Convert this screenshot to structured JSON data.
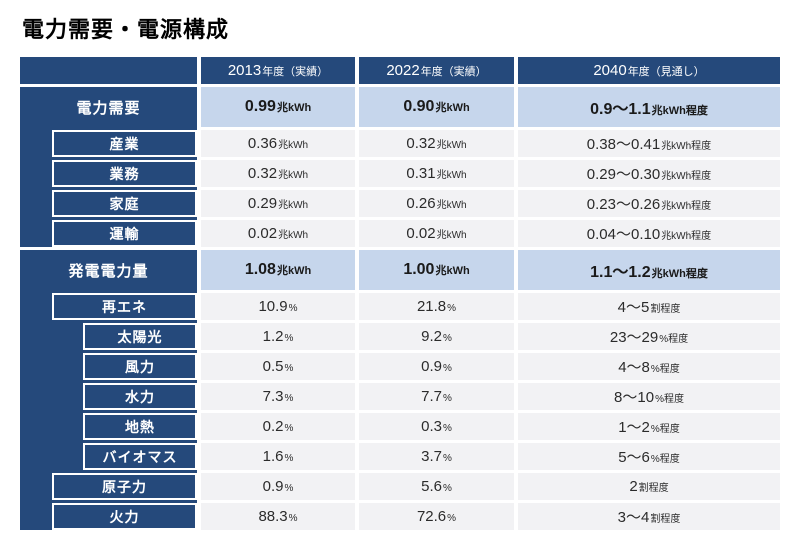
{
  "title": "電力需要・電源構成",
  "colors": {
    "navy": "#25497b",
    "light_blue": "#c6d6ec",
    "row_gray": "#f2f2f4",
    "text_dark": "#1a1a1a",
    "text_body": "#2b2b2b",
    "gap_white": "#ffffff"
  },
  "table": {
    "header": [
      {
        "year": "2013",
        "note": "年度（実績）"
      },
      {
        "year": "2022",
        "note": "年度（実績）"
      },
      {
        "year": "2040",
        "note": "年度（見通し）"
      }
    ],
    "rows": [
      {
        "key": "demand",
        "label": "電力需要",
        "level": 0,
        "bold": true,
        "values": [
          {
            "num": "0.99",
            "unit": "兆kWh"
          },
          {
            "num": "0.90",
            "unit": "兆kWh"
          },
          {
            "num": "0.9〜1.1",
            "unit": "兆kWh程度"
          }
        ]
      },
      {
        "key": "industry",
        "label": "産業",
        "level": 1,
        "bold": false,
        "values": [
          {
            "num": "0.36",
            "unit": "兆kWh"
          },
          {
            "num": "0.32",
            "unit": "兆kWh"
          },
          {
            "num": "0.38〜0.41",
            "unit": "兆kWh程度"
          }
        ]
      },
      {
        "key": "commercial",
        "label": "業務",
        "level": 1,
        "bold": false,
        "values": [
          {
            "num": "0.32",
            "unit": "兆kWh"
          },
          {
            "num": "0.31",
            "unit": "兆kWh"
          },
          {
            "num": "0.29〜0.30",
            "unit": "兆kWh程度"
          }
        ]
      },
      {
        "key": "residential",
        "label": "家庭",
        "level": 1,
        "bold": false,
        "values": [
          {
            "num": "0.29",
            "unit": "兆kWh"
          },
          {
            "num": "0.26",
            "unit": "兆kWh"
          },
          {
            "num": "0.23〜0.26",
            "unit": "兆kWh程度"
          }
        ]
      },
      {
        "key": "transport",
        "label": "運輸",
        "level": 1,
        "bold": false,
        "values": [
          {
            "num": "0.02",
            "unit": "兆kWh"
          },
          {
            "num": "0.02",
            "unit": "兆kWh"
          },
          {
            "num": "0.04〜0.10",
            "unit": "兆kWh程度"
          }
        ]
      },
      {
        "key": "generation",
        "label": "発電電力量",
        "level": 0,
        "bold": true,
        "values": [
          {
            "num": "1.08",
            "unit": "兆kWh"
          },
          {
            "num": "1.00",
            "unit": "兆kWh"
          },
          {
            "num": "1.1〜1.2",
            "unit": "兆kWh程度"
          }
        ]
      },
      {
        "key": "renewables",
        "label": "再エネ",
        "level": 1,
        "bold": false,
        "values": [
          {
            "num": "10.9",
            "unit": "%"
          },
          {
            "num": "21.8",
            "unit": "%"
          },
          {
            "num": "4〜5",
            "unit": "割程度"
          }
        ]
      },
      {
        "key": "solar",
        "label": "太陽光",
        "level": 2,
        "bold": false,
        "values": [
          {
            "num": "1.2",
            "unit": "%"
          },
          {
            "num": "9.2",
            "unit": "%"
          },
          {
            "num": "23〜29",
            "unit": "%程度"
          }
        ]
      },
      {
        "key": "wind",
        "label": "風力",
        "level": 2,
        "bold": false,
        "values": [
          {
            "num": "0.5",
            "unit": "%"
          },
          {
            "num": "0.9",
            "unit": "%"
          },
          {
            "num": "4〜8",
            "unit": "%程度"
          }
        ]
      },
      {
        "key": "hydro",
        "label": "水力",
        "level": 2,
        "bold": false,
        "values": [
          {
            "num": "7.3",
            "unit": "%"
          },
          {
            "num": "7.7",
            "unit": "%"
          },
          {
            "num": "8〜10",
            "unit": "%程度"
          }
        ]
      },
      {
        "key": "geothermal",
        "label": "地熱",
        "level": 2,
        "bold": false,
        "values": [
          {
            "num": "0.2",
            "unit": "%"
          },
          {
            "num": "0.3",
            "unit": "%"
          },
          {
            "num": "1〜2",
            "unit": "%程度"
          }
        ]
      },
      {
        "key": "biomass",
        "label": "バイオマス",
        "level": 2,
        "bold": false,
        "values": [
          {
            "num": "1.6",
            "unit": "%"
          },
          {
            "num": "3.7",
            "unit": "%"
          },
          {
            "num": "5〜6",
            "unit": "%程度"
          }
        ]
      },
      {
        "key": "nuclear",
        "label": "原子力",
        "level": 1,
        "bold": false,
        "values": [
          {
            "num": "0.9",
            "unit": "%"
          },
          {
            "num": "5.6",
            "unit": "%"
          },
          {
            "num": "2",
            "unit": "割程度"
          }
        ]
      },
      {
        "key": "thermal",
        "label": "火力",
        "level": 1,
        "bold": false,
        "values": [
          {
            "num": "88.3",
            "unit": "%"
          },
          {
            "num": "72.6",
            "unit": "%"
          },
          {
            "num": "3〜4",
            "unit": "割程度"
          }
        ]
      }
    ]
  },
  "chart_data": {
    "type": "table",
    "title": "電力需要・電源構成",
    "columns": [
      "",
      "2013年度（実績）",
      "2022年度（実績）",
      "2040年度（見通し）"
    ],
    "rows": [
      [
        "電力需要",
        "0.99兆kWh",
        "0.90兆kWh",
        "0.9〜1.1兆kWh程度"
      ],
      [
        "産業",
        "0.36兆kWh",
        "0.32兆kWh",
        "0.38〜0.41兆kWh程度"
      ],
      [
        "業務",
        "0.32兆kWh",
        "0.31兆kWh",
        "0.29〜0.30兆kWh程度"
      ],
      [
        "家庭",
        "0.29兆kWh",
        "0.26兆kWh",
        "0.23〜0.26兆kWh程度"
      ],
      [
        "運輸",
        "0.02兆kWh",
        "0.02兆kWh",
        "0.04〜0.10兆kWh程度"
      ],
      [
        "発電電力量",
        "1.08兆kWh",
        "1.00兆kWh",
        "1.1〜1.2兆kWh程度"
      ],
      [
        "再エネ",
        "10.9%",
        "21.8%",
        "4〜5割程度"
      ],
      [
        "太陽光",
        "1.2%",
        "9.2%",
        "23〜29%程度"
      ],
      [
        "風力",
        "0.5%",
        "0.9%",
        "4〜8%程度"
      ],
      [
        "水力",
        "7.3%",
        "7.7%",
        "8〜10%程度"
      ],
      [
        "地熱",
        "0.2%",
        "0.3%",
        "1〜2%程度"
      ],
      [
        "バイオマス",
        "1.6%",
        "3.7%",
        "5〜6%程度"
      ],
      [
        "原子力",
        "0.9%",
        "5.6%",
        "2割程度"
      ],
      [
        "火力",
        "88.3%",
        "72.6%",
        "3〜4割程度"
      ]
    ]
  }
}
